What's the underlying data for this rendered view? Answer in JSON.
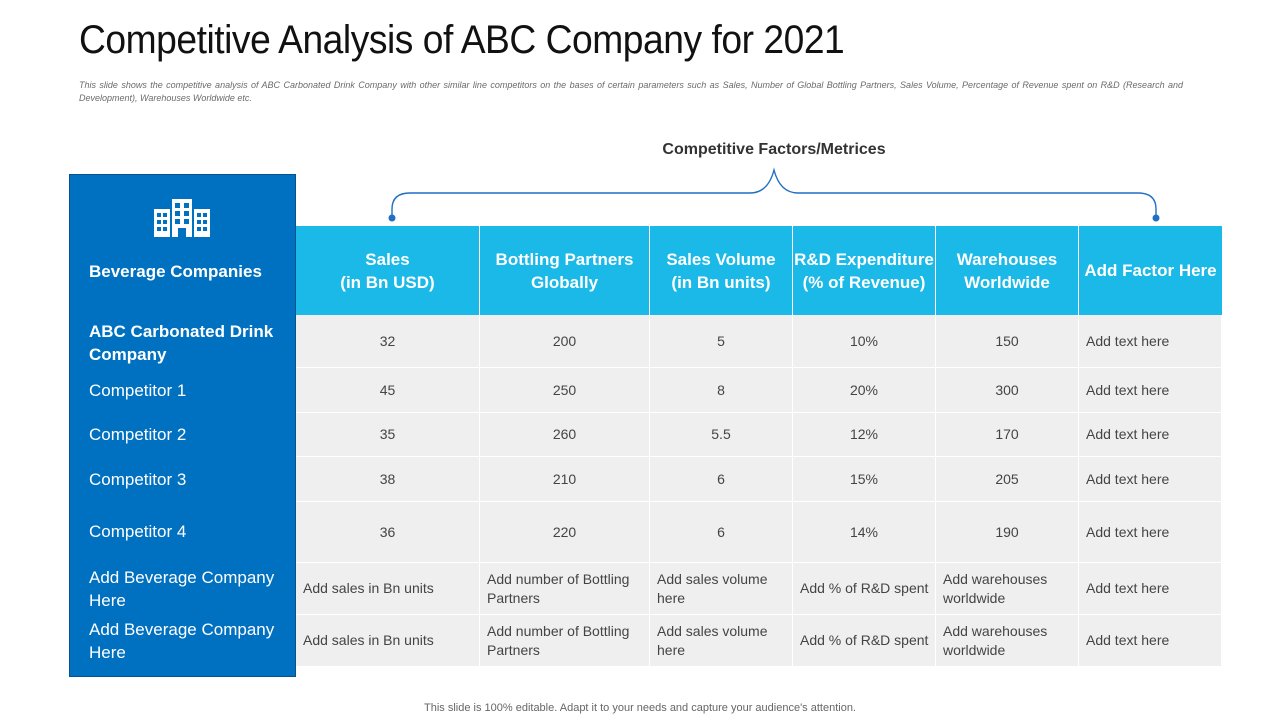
{
  "title": "Competitive Analysis of ABC Company for 2021",
  "subtitle": "This slide shows the competitive analysis of ABC Carbonated Drink Company with other similar line competitors on the bases of certain parameters such as Sales, Number of Global Bottling Partners, Sales Volume, Percentage of Revenue spent on R&D (Research and Development), Warehouses Worldwide etc.",
  "factors_label": "Competitive Factors/Metrices",
  "left_panel": {
    "icon": "building-icon",
    "header": "Beverage Companies",
    "rows": [
      "ABC Carbonated Drink Company",
      "Competitor 1",
      "Competitor 2",
      "Competitor 3",
      "Competitor 4",
      "Add Beverage Company Here",
      "Add Beverage Company Here"
    ]
  },
  "table": {
    "headers": [
      "Sales\n(in Bn USD)",
      "Bottling Partners\nGlobally",
      "Sales Volume\n(in Bn units)",
      "R&D Expenditure\n(% of Revenue)",
      "Warehouses\nWorldwide",
      "Add Factor Here"
    ],
    "rows": [
      [
        "32",
        "200",
        "5",
        "10%",
        "150",
        "Add text here"
      ],
      [
        "45",
        "250",
        "8",
        "20%",
        "300",
        "Add text here"
      ],
      [
        "35",
        "260",
        "5.5",
        "12%",
        "170",
        "Add text here"
      ],
      [
        "38",
        "210",
        "6",
        "15%",
        "205",
        "Add text here"
      ],
      [
        "36",
        "220",
        "6",
        "14%",
        "190",
        "Add text here"
      ],
      [
        "Add sales in Bn units",
        "Add number of Bottling Partners",
        "Add sales volume here",
        "Add % of R&D spent",
        "Add warehouses worldwide",
        "Add text here"
      ],
      [
        "Add sales in Bn units",
        "Add number of Bottling Partners",
        "Add sales volume here",
        "Add % of R&D spent",
        "Add warehouses worldwide",
        "Add text here"
      ]
    ]
  },
  "colors": {
    "panel_blue": "#0070c0",
    "header_cyan": "#1ab9e8",
    "cell_gray": "#efefef",
    "brace_blue": "#1f6fc4"
  },
  "footer": "This slide is 100% editable. Adapt it to your needs and capture your audience's attention."
}
